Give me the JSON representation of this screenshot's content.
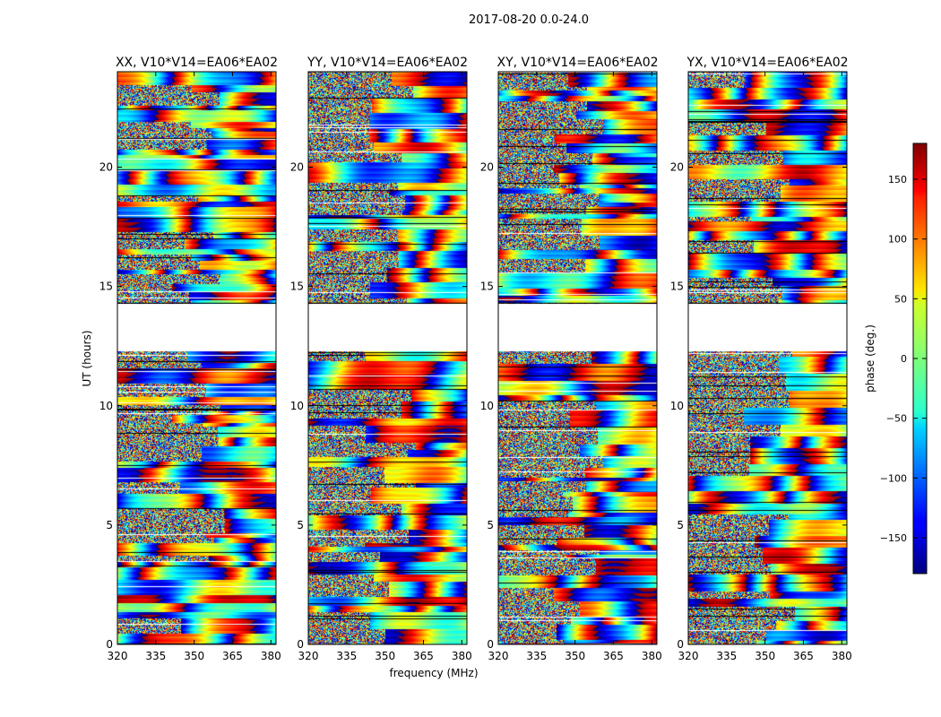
{
  "chart_data": {
    "type": "heatmap",
    "suptitle": "2017-08-20 0.0-24.0",
    "xlabel": "frequency (MHz)",
    "ylabel": "UT (hours)",
    "xlim": [
      320,
      382
    ],
    "ylim": [
      0,
      24
    ],
    "xticks": [
      "320",
      "335",
      "350",
      "365",
      "380"
    ],
    "xtick_values": [
      320,
      335,
      350,
      365,
      380
    ],
    "yticks": [
      "0",
      "5",
      "10",
      "15",
      "20"
    ],
    "ytick_values": [
      0,
      5,
      10,
      15,
      20
    ],
    "colorbar": {
      "label": "phase (deg.)",
      "range": [
        -180,
        180
      ],
      "ticks": [
        "−150",
        "−100",
        "−50",
        "0",
        "50",
        "100",
        "150"
      ],
      "tick_values": [
        -150,
        -100,
        -50,
        0,
        50,
        100,
        150
      ]
    },
    "data_gap_hours": [
      12.3,
      14.3
    ],
    "panels": [
      {
        "title": "XX, V10*V14=EA06*EA02"
      },
      {
        "title": "YY, V10*V14=EA06*EA02"
      },
      {
        "title": "XY, V10*V14=EA06*EA02"
      },
      {
        "title": "YX, V10*V14=EA06*EA02"
      }
    ]
  }
}
